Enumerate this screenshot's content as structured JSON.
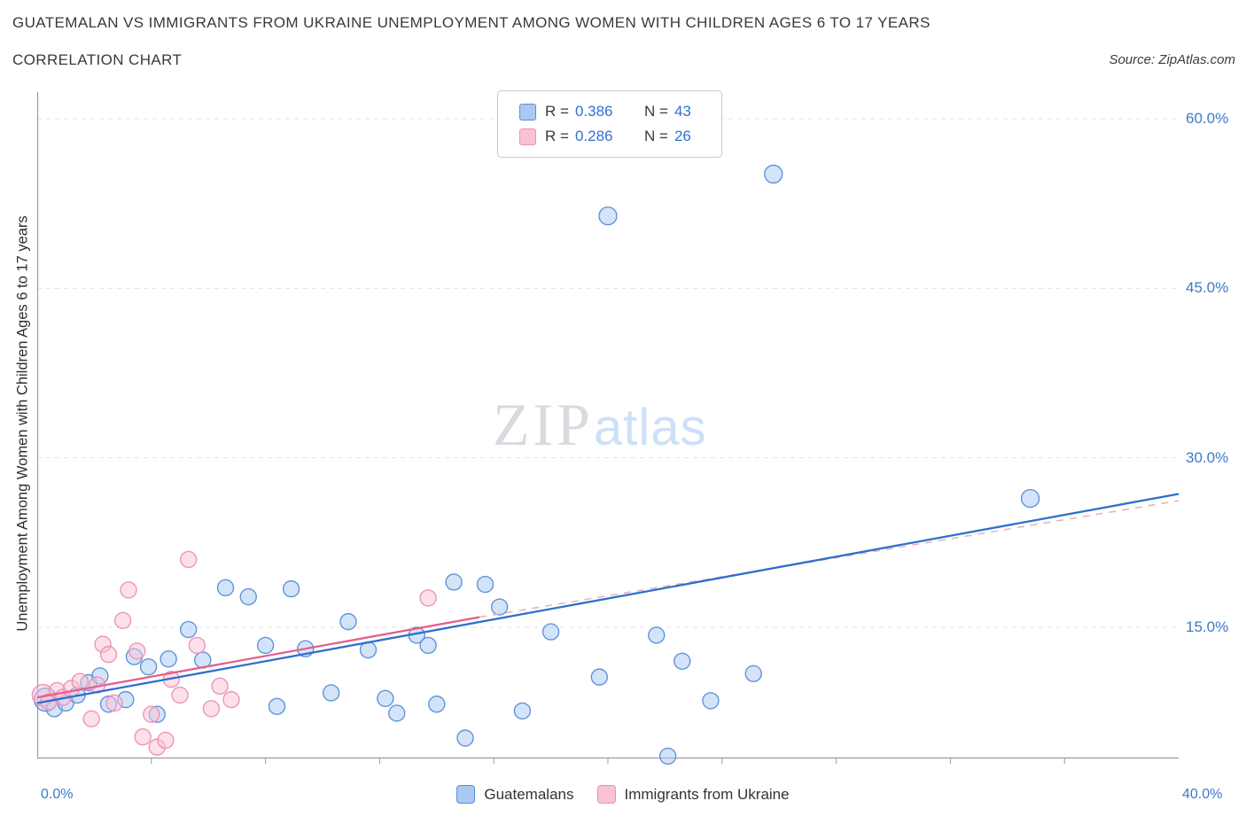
{
  "header": {
    "title": "GUATEMALAN VS IMMIGRANTS FROM UKRAINE UNEMPLOYMENT AMONG WOMEN WITH CHILDREN AGES 6 TO 17 YEARS",
    "subtitle": "CORRELATION CHART",
    "source": "Source: ZipAtlas.com"
  },
  "watermark": {
    "zip": "ZIP",
    "atlas": "atlas"
  },
  "legend_box": {
    "rows": [
      {
        "r_label": "R =",
        "r_value": "0.386",
        "n_label": "N =",
        "n_value": "43"
      },
      {
        "r_label": "R =",
        "r_value": "0.286",
        "n_label": "N =",
        "n_value": "26"
      }
    ]
  },
  "chart_data": {
    "type": "scatter",
    "title": "Guatemalan vs Immigrants from Ukraine Unemployment Among Women with Children Ages 6 to 17 years",
    "xlabel": "",
    "ylabel": "Unemployment Among Women with Children Ages 6 to 17 years",
    "xlim": [
      0,
      40
    ],
    "ylim": [
      3.5,
      62
    ],
    "grid": "horizontal-dashed",
    "x_tick_labels": [
      "0.0%",
      "40.0%"
    ],
    "x_minor_ticks": [
      4,
      8,
      12,
      16,
      20,
      24,
      28,
      32,
      36
    ],
    "y_tick_values": [
      15,
      30,
      45,
      60
    ],
    "y_tick_labels": [
      "15.0%",
      "30.0%",
      "45.0%",
      "60.0%"
    ],
    "axis_label_color": "#3d7ac6",
    "series": [
      {
        "id": "guatemalans",
        "name": "Guatemalans",
        "R": 0.386,
        "N": 43,
        "fill": "#a9c9f2",
        "stroke": "#5a8ed8",
        "points": [
          [
            0.3,
            8.6,
            13
          ],
          [
            0.6,
            7.8
          ],
          [
            1.0,
            8.3
          ],
          [
            1.4,
            9.0
          ],
          [
            1.8,
            10.1
          ],
          [
            2.2,
            10.7
          ],
          [
            2.5,
            8.2
          ],
          [
            3.1,
            8.6
          ],
          [
            3.4,
            12.4
          ],
          [
            3.9,
            11.5
          ],
          [
            4.2,
            7.3
          ],
          [
            4.6,
            12.2
          ],
          [
            5.3,
            14.8
          ],
          [
            5.8,
            12.1
          ],
          [
            6.6,
            18.5
          ],
          [
            7.4,
            17.7
          ],
          [
            8.0,
            13.4
          ],
          [
            8.4,
            8.0
          ],
          [
            8.9,
            18.4
          ],
          [
            9.4,
            13.1
          ],
          [
            10.3,
            9.2
          ],
          [
            10.9,
            15.5
          ],
          [
            11.6,
            13.0
          ],
          [
            12.2,
            8.7
          ],
          [
            12.6,
            7.4
          ],
          [
            13.3,
            14.3
          ],
          [
            13.7,
            13.4
          ],
          [
            14.0,
            8.2
          ],
          [
            14.6,
            19.0
          ],
          [
            15.0,
            5.2
          ],
          [
            15.7,
            18.8
          ],
          [
            16.2,
            16.8
          ],
          [
            17.0,
            7.6
          ],
          [
            18.0,
            14.6
          ],
          [
            19.7,
            10.6
          ],
          [
            20.0,
            51.4,
            10
          ],
          [
            21.7,
            14.3
          ],
          [
            22.1,
            3.6
          ],
          [
            22.6,
            12.0
          ],
          [
            23.6,
            8.5
          ],
          [
            25.1,
            10.9
          ],
          [
            25.8,
            55.1,
            10
          ],
          [
            34.8,
            26.4,
            10
          ]
        ]
      },
      {
        "id": "ukraine",
        "name": "Immigrants from Ukraine",
        "R": 0.286,
        "N": 26,
        "fill": "#f9c2d6",
        "stroke": "#ee8fb3",
        "points": [
          [
            0.2,
            9.0,
            12
          ],
          [
            0.4,
            8.4
          ],
          [
            0.7,
            9.4
          ],
          [
            0.9,
            8.8
          ],
          [
            1.2,
            9.6
          ],
          [
            1.5,
            10.2
          ],
          [
            1.9,
            6.9
          ],
          [
            2.1,
            9.9
          ],
          [
            2.3,
            13.5
          ],
          [
            2.5,
            12.6
          ],
          [
            2.7,
            8.3
          ],
          [
            3.0,
            15.6
          ],
          [
            3.2,
            18.3
          ],
          [
            3.5,
            12.9
          ],
          [
            3.7,
            5.3
          ],
          [
            4.0,
            7.3
          ],
          [
            4.2,
            4.4
          ],
          [
            4.5,
            5.0
          ],
          [
            4.7,
            10.4
          ],
          [
            5.0,
            9.0
          ],
          [
            5.3,
            21.0
          ],
          [
            5.6,
            13.4
          ],
          [
            6.1,
            7.8
          ],
          [
            6.4,
            9.8
          ],
          [
            6.8,
            8.6
          ],
          [
            13.7,
            17.6
          ]
        ]
      }
    ],
    "trendlines": [
      {
        "series_id": "ukraine",
        "style": "solid",
        "color": "#e2608d",
        "x1": 0,
        "y1": 8.8,
        "x2": 15.5,
        "y2": 15.9
      },
      {
        "series_id": "ukraine",
        "style": "dashed",
        "color": "#ecb0c2",
        "x1": 15.5,
        "y1": 15.9,
        "x2": 40,
        "y2": 26.2
      },
      {
        "series_id": "guatemalans",
        "style": "solid",
        "color": "#2e6fce",
        "x1": 0,
        "y1": 8.3,
        "x2": 40,
        "y2": 26.8
      }
    ],
    "legend_position": "bottom-center"
  }
}
